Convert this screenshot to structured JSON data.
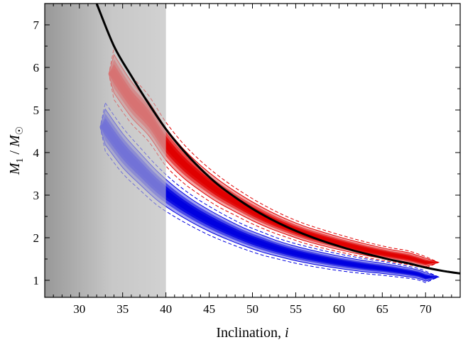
{
  "chart_data": {
    "type": "contour",
    "xlabel": "Inclination, i",
    "ylabel": "M1 / M☉",
    "xlim": [
      26,
      74
    ],
    "ylim": [
      0.6,
      7.5
    ],
    "x_ticks": [
      30,
      35,
      40,
      45,
      50,
      55,
      60,
      65,
      70
    ],
    "y_ticks": [
      1,
      2,
      3,
      4,
      5,
      6,
      7
    ],
    "grid": false,
    "legend": "none",
    "excluded_region": {
      "x_range": [
        26,
        40
      ],
      "fill": "gray gradient"
    },
    "series": [
      {
        "kind": "filled-contour",
        "color": "#e00000",
        "center_line": [
          [
            34,
            5.85
          ],
          [
            36,
            5.25
          ],
          [
            38,
            4.8
          ],
          [
            40,
            4.2
          ],
          [
            42,
            3.75
          ],
          [
            44,
            3.4
          ],
          [
            46,
            3.1
          ],
          [
            48,
            2.85
          ],
          [
            50,
            2.62
          ],
          [
            52,
            2.42
          ],
          [
            54,
            2.25
          ],
          [
            56,
            2.1
          ],
          [
            58,
            1.98
          ],
          [
            60,
            1.87
          ],
          [
            62,
            1.77
          ],
          [
            64,
            1.68
          ],
          [
            66,
            1.6
          ],
          [
            68,
            1.53
          ],
          [
            70,
            1.42
          ]
        ],
        "half_width": [
          0.45,
          0.42,
          0.4,
          0.38,
          0.34,
          0.3,
          0.27,
          0.24,
          0.22,
          0.2,
          0.18,
          0.17,
          0.16,
          0.15,
          0.14,
          0.13,
          0.12,
          0.12,
          0.1
        ]
      },
      {
        "kind": "filled-contour",
        "color": "#0000e0",
        "center_line": [
          [
            33,
            4.6
          ],
          [
            35,
            4.05
          ],
          [
            37,
            3.62
          ],
          [
            39,
            3.22
          ],
          [
            41,
            2.9
          ],
          [
            43,
            2.63
          ],
          [
            45,
            2.4
          ],
          [
            47,
            2.2
          ],
          [
            49,
            2.02
          ],
          [
            51,
            1.87
          ],
          [
            53,
            1.74
          ],
          [
            55,
            1.63
          ],
          [
            57,
            1.54
          ],
          [
            59,
            1.46
          ],
          [
            61,
            1.39
          ],
          [
            63,
            1.33
          ],
          [
            65,
            1.28
          ],
          [
            67,
            1.22
          ],
          [
            69,
            1.15
          ],
          [
            70,
            1.08
          ]
        ],
        "half_width": [
          0.42,
          0.4,
          0.37,
          0.34,
          0.3,
          0.27,
          0.25,
          0.23,
          0.21,
          0.2,
          0.18,
          0.17,
          0.16,
          0.15,
          0.14,
          0.13,
          0.12,
          0.11,
          0.1,
          0.1
        ]
      },
      {
        "kind": "line",
        "color": "#000000",
        "points": [
          [
            32,
            7.5
          ],
          [
            34,
            6.5
          ],
          [
            36,
            5.8
          ],
          [
            38,
            5.15
          ],
          [
            40,
            4.55
          ],
          [
            42,
            4.05
          ],
          [
            44,
            3.62
          ],
          [
            46,
            3.25
          ],
          [
            48,
            2.95
          ],
          [
            50,
            2.68
          ],
          [
            52,
            2.45
          ],
          [
            54,
            2.25
          ],
          [
            56,
            2.08
          ],
          [
            58,
            1.93
          ],
          [
            60,
            1.8
          ],
          [
            62,
            1.68
          ],
          [
            64,
            1.58
          ],
          [
            66,
            1.48
          ],
          [
            68,
            1.4
          ],
          [
            70,
            1.3
          ],
          [
            72,
            1.22
          ],
          [
            74,
            1.16
          ]
        ]
      }
    ]
  }
}
